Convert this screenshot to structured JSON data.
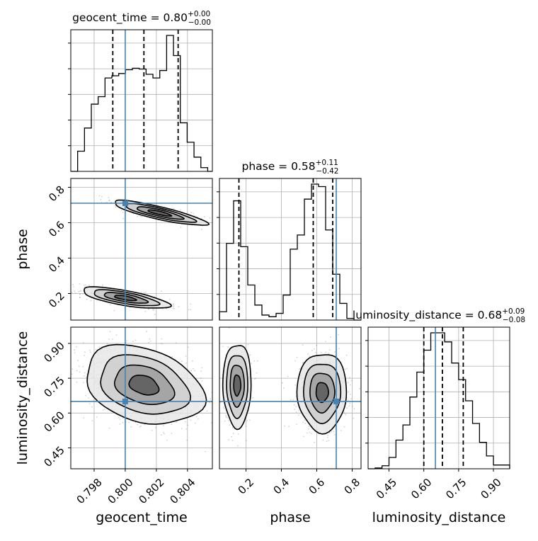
{
  "chart_data": {
    "type": "corner",
    "parameters": [
      "geocent_time",
      "phase",
      "luminosity_distance"
    ],
    "axis_labels": {
      "geocent_time": "geocent_time",
      "phase": "phase",
      "luminosity_distance": "luminosity_distance"
    },
    "ranges": {
      "geocent_time": [
        0.7965,
        0.8056
      ],
      "phase": [
        0.05,
        0.85
      ],
      "luminosity_distance": [
        0.36,
        0.97
      ]
    },
    "ticks": {
      "geocent_time": [
        0.798,
        0.8,
        0.802,
        0.804
      ],
      "phase": [
        0.2,
        0.4,
        0.6,
        0.8
      ],
      "luminosity_distance": [
        0.45,
        0.6,
        0.75,
        0.9
      ]
    },
    "tick_labels": {
      "geocent_time": [
        "0.798",
        "0.800",
        "0.802",
        "0.804"
      ],
      "phase": [
        "0.2",
        "0.4",
        "0.6",
        "0.8"
      ],
      "luminosity_distance": [
        "0.45",
        "0.60",
        "0.75",
        "0.90"
      ]
    },
    "truths": {
      "geocent_time": 0.8,
      "phase": 0.71,
      "luminosity_distance": 0.65
    },
    "titles": [
      {
        "param": "geocent_time",
        "main": "geocent_time = 0.80",
        "sup": "+0.00",
        "sub": "−0.00"
      },
      {
        "param": "phase",
        "main": "phase = 0.58",
        "sup": "+0.11",
        "sub": "−0.42"
      },
      {
        "param": "luminosity_distance",
        "main": "luminosity_distance = 0.68",
        "sup": "+0.09",
        "sub": "−0.08"
      }
    ],
    "quantiles": {
      "geocent_time": [
        0.7992,
        0.8012,
        0.8034
      ],
      "phase": [
        0.16,
        0.58,
        0.69
      ],
      "luminosity_distance": [
        0.6,
        0.68,
        0.77
      ]
    },
    "histograms": {
      "geocent_time": {
        "bin_edges": [
          0.7965,
          0.79694,
          0.79738,
          0.79782,
          0.79826,
          0.7987,
          0.79914,
          0.79958,
          0.80002,
          0.80046,
          0.8009,
          0.80134,
          0.80178,
          0.80222,
          0.80266,
          0.8031,
          0.80354,
          0.80398,
          0.80442,
          0.80486,
          0.8053,
          0.8056
        ],
        "counts": [
          0,
          27,
          58,
          90,
          100,
          125,
          128,
          131,
          136,
          138,
          137,
          130,
          125,
          135,
          182,
          155,
          65,
          39,
          19,
          5,
          0
        ]
      },
      "phase": {
        "bin_edges": [
          0.05,
          0.09,
          0.13,
          0.17,
          0.21,
          0.25,
          0.29,
          0.33,
          0.37,
          0.41,
          0.45,
          0.49,
          0.53,
          0.57,
          0.61,
          0.65,
          0.69,
          0.73,
          0.77,
          0.81,
          0.85
        ],
        "counts": [
          10,
          92,
          143,
          88,
          42,
          18,
          6,
          4,
          8,
          30,
          85,
          102,
          145,
          163,
          160,
          108,
          55,
          20,
          2,
          0
        ]
      },
      "luminosity_distance": {
        "bin_edges": [
          0.36,
          0.39,
          0.42,
          0.45,
          0.48,
          0.51,
          0.54,
          0.57,
          0.6,
          0.63,
          0.66,
          0.69,
          0.72,
          0.75,
          0.78,
          0.81,
          0.84,
          0.87,
          0.9,
          0.93,
          0.97
        ],
        "counts": [
          0,
          1,
          4,
          15,
          38,
          58,
          95,
          128,
          157,
          180,
          180,
          168,
          140,
          118,
          90,
          60,
          35,
          17,
          5,
          5
        ]
      }
    },
    "clusters_2d": [
      {
        "x": "geocent_time",
        "y": "phase",
        "mean": [
          0.8022,
          0.655
        ],
        "sd": [
          0.0015,
          0.035
        ],
        "rho": -0.85,
        "weight": 0.55
      },
      {
        "x": "geocent_time",
        "y": "phase",
        "mean": [
          0.8,
          0.175
        ],
        "sd": [
          0.0014,
          0.03
        ],
        "rho": -0.7,
        "weight": 0.45
      },
      {
        "x": "geocent_time",
        "y": "luminosity_distance",
        "mean": [
          0.8012,
          0.72
        ],
        "sd": [
          0.0019,
          0.085
        ],
        "rho": -0.3,
        "weight": 1.0
      },
      {
        "x": "phase",
        "y": "luminosity_distance",
        "mean": [
          0.15,
          0.72
        ],
        "sd": [
          0.04,
          0.09
        ],
        "rho": 0.0,
        "weight": 0.35
      },
      {
        "x": "phase",
        "y": "luminosity_distance",
        "mean": [
          0.63,
          0.69
        ],
        "sd": [
          0.07,
          0.085
        ],
        "rho": 0.0,
        "weight": 0.65
      }
    ],
    "grid": true,
    "truth_color": "#4682b4",
    "hist_color": "#000000"
  }
}
